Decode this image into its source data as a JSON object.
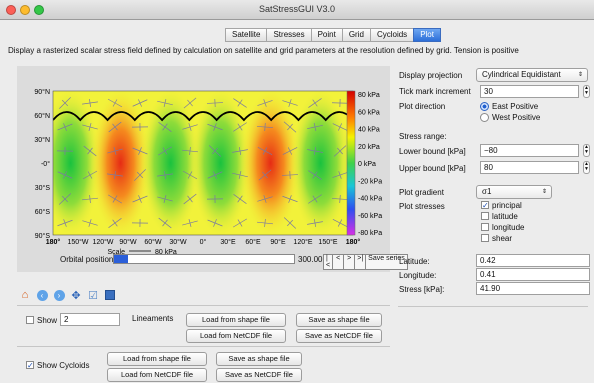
{
  "window": {
    "title": "SatStressGUI V3.0"
  },
  "tabs": [
    {
      "label": "Satellite",
      "active": false
    },
    {
      "label": "Stresses",
      "active": false
    },
    {
      "label": "Point",
      "active": false
    },
    {
      "label": "Grid",
      "active": false
    },
    {
      "label": "Cycloids",
      "active": false
    },
    {
      "label": "Plot",
      "active": true
    }
  ],
  "description": "Display a rasterized scalar stress field defined by calculation on satellite and grid parameters at the resolution defined by grid.  Tension is positive",
  "map": {
    "y_ticks": [
      "90°N",
      "60°N",
      "30°N",
      "-0°",
      "30°S",
      "60°S",
      "90°S"
    ],
    "x_ticks": [
      "180°",
      "150°W",
      "120°W",
      "90°W",
      "60°W",
      "30°W",
      "0°",
      "30°E",
      "60°E",
      "90°E",
      "120°E",
      "150°E",
      "180°"
    ],
    "scale_label": "Scale",
    "scale_value": "80 kPa",
    "colorbar_ticks": [
      "80 kPa",
      "60 kPa",
      "40 kPa",
      "20 kPa",
      "0 kPa",
      "-20 kPa",
      "-40 kPa",
      "-60 kPa",
      "-80 kPa"
    ],
    "colors": {
      "warm": "#e8401c",
      "cool": "#22c94a",
      "mid": "#f2f23a",
      "cycloid": "#000000"
    }
  },
  "orbit": {
    "label": "Orbital position",
    "value": "300.00",
    "progress": 0.08,
    "buttons": [
      "|<",
      "<",
      ">",
      ">|"
    ],
    "save_series": "Save series"
  },
  "toolbar": {
    "icons": [
      "home-icon",
      "back-icon",
      "forward-icon",
      "pan-icon",
      "configure-icon",
      "save-icon"
    ]
  },
  "lineaments": {
    "show_label": "Show",
    "count": "2",
    "label": "Lineaments",
    "load_shape": "Load from shape file",
    "save_shape": "Save as shape file",
    "load_netcdf": "Load fom NetCDF file",
    "save_netcdf": "Save as NetCDF file"
  },
  "cycloids": {
    "show_label": "Show Cycloids",
    "checked": true,
    "load_shape": "Load from shape file",
    "save_shape": "Save as shape file",
    "load_netcdf": "Load fom NetCDF file",
    "save_netcdf": "Save as NetCDF file"
  },
  "settings": {
    "projection_label": "Display projection",
    "projection_value": "Cylindrical Equidistant",
    "tick_label": "Tick mark increment",
    "tick_value": "30",
    "direction_label": "Plot direction",
    "east": "East Positive",
    "west": "West Positive",
    "stress_range_label": "Stress range:",
    "lower_label": "Lower bound [kPa]",
    "lower_value": "−80",
    "upper_label": "Upper bound [kPa]",
    "upper_value": "80",
    "gradient_label": "Plot gradient",
    "gradient_value": "σ1",
    "stresses_label": "Plot stresses",
    "stress_options": [
      {
        "label": "principal",
        "checked": true
      },
      {
        "label": "latitude",
        "checked": false
      },
      {
        "label": "longitude",
        "checked": false
      },
      {
        "label": "shear",
        "checked": false
      }
    ],
    "latitude_label": "Latitude:",
    "latitude_value": "0.42",
    "longitude_label": "Longitude:",
    "longitude_value": "0.41",
    "stress_label": "Stress [kPa]:",
    "stress_value": "41.90"
  }
}
